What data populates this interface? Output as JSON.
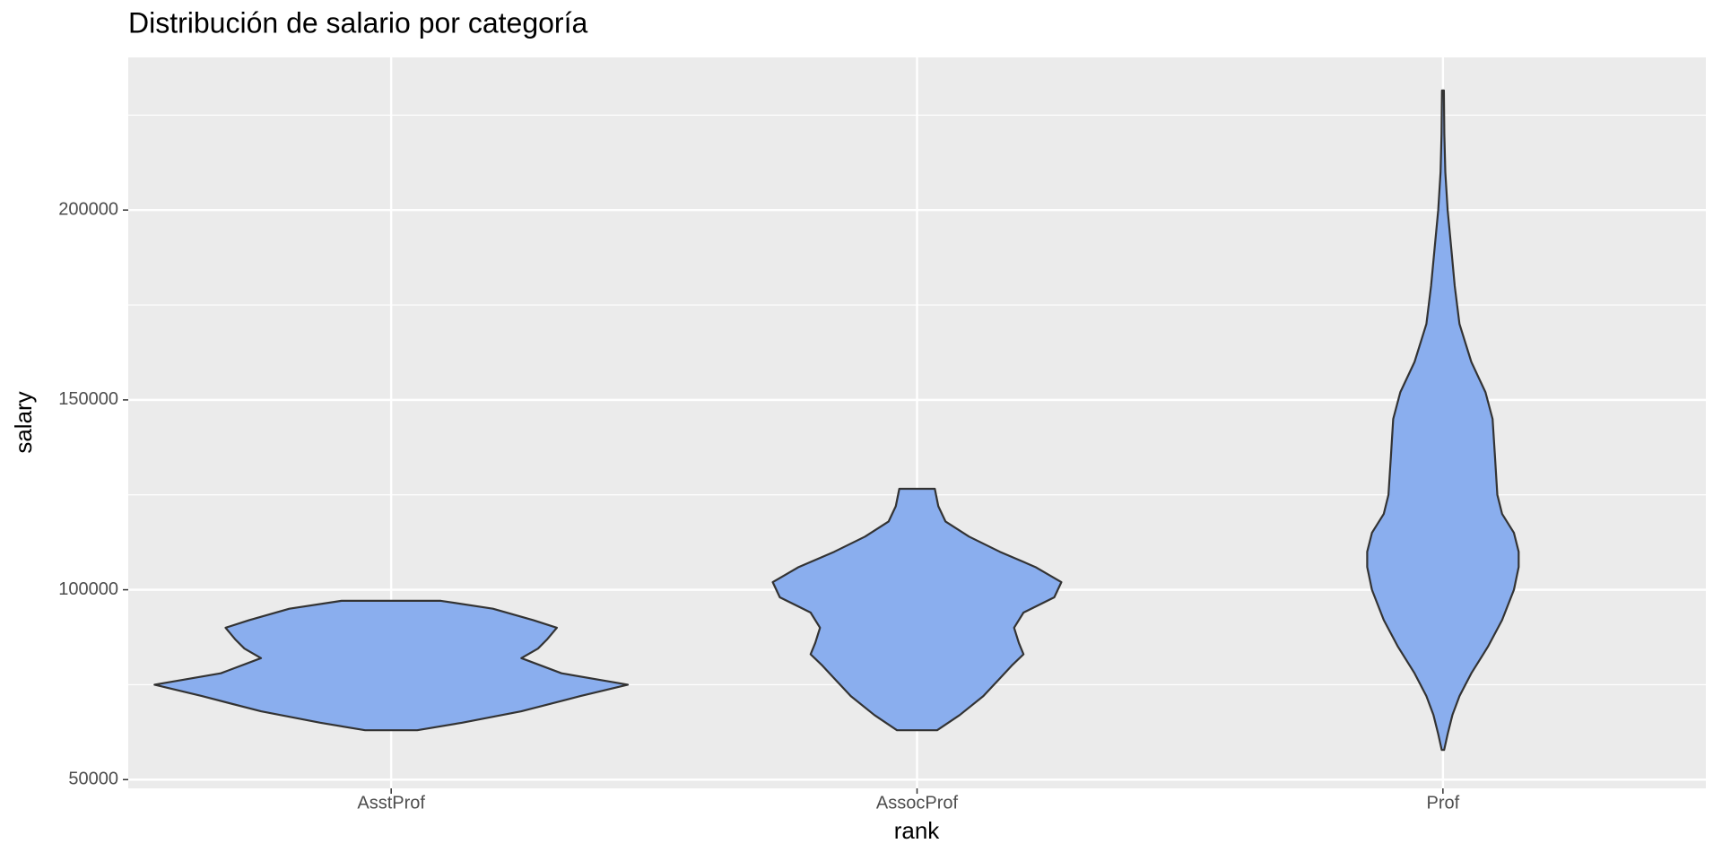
{
  "chart_data": {
    "type": "violin",
    "title": "Distribución de salario por categoría",
    "x_label": "rank",
    "y_label": "salary",
    "categories": [
      "AsstProf",
      "AssocProf",
      "Prof"
    ],
    "color": "#8aaeee",
    "outline": "#333333",
    "ylim": [
      47700,
      240200
    ],
    "yticks": [
      50000,
      100000,
      150000,
      200000
    ],
    "y_minor_grid": [
      75000,
      125000,
      175000,
      225000
    ],
    "grid": true,
    "series": [
      {
        "salary": [
          63000,
          65000,
          68000,
          72000,
          75000,
          78000,
          82000,
          84500,
          87000,
          90000,
          92000,
          95000,
          97100
        ],
        "density": [
          0.11,
          0.3,
          0.55,
          0.8,
          1.0,
          0.72,
          0.55,
          0.62,
          0.66,
          0.7,
          0.6,
          0.43,
          0.21
        ]
      },
      {
        "salary": [
          63000,
          67000,
          72000,
          76000,
          80000,
          83000,
          86000,
          90000,
          94000,
          98000,
          102000,
          106000,
          110000,
          114000,
          118000,
          122000,
          126600
        ],
        "density": [
          0.085,
          0.18,
          0.28,
          0.34,
          0.4,
          0.45,
          0.43,
          0.41,
          0.45,
          0.58,
          0.61,
          0.5,
          0.35,
          0.22,
          0.12,
          0.09,
          0.075
        ]
      },
      {
        "salary": [
          57800,
          62000,
          67000,
          72000,
          78000,
          85000,
          92000,
          100000,
          106000,
          110000,
          115000,
          120000,
          125000,
          135000,
          145000,
          152000,
          160000,
          170000,
          180000,
          190000,
          200000,
          210000,
          220000,
          231500
        ],
        "density": [
          0.005,
          0.02,
          0.04,
          0.07,
          0.12,
          0.19,
          0.25,
          0.3,
          0.32,
          0.32,
          0.3,
          0.25,
          0.23,
          0.22,
          0.21,
          0.18,
          0.12,
          0.07,
          0.05,
          0.035,
          0.02,
          0.01,
          0.006,
          0.004
        ]
      }
    ]
  }
}
